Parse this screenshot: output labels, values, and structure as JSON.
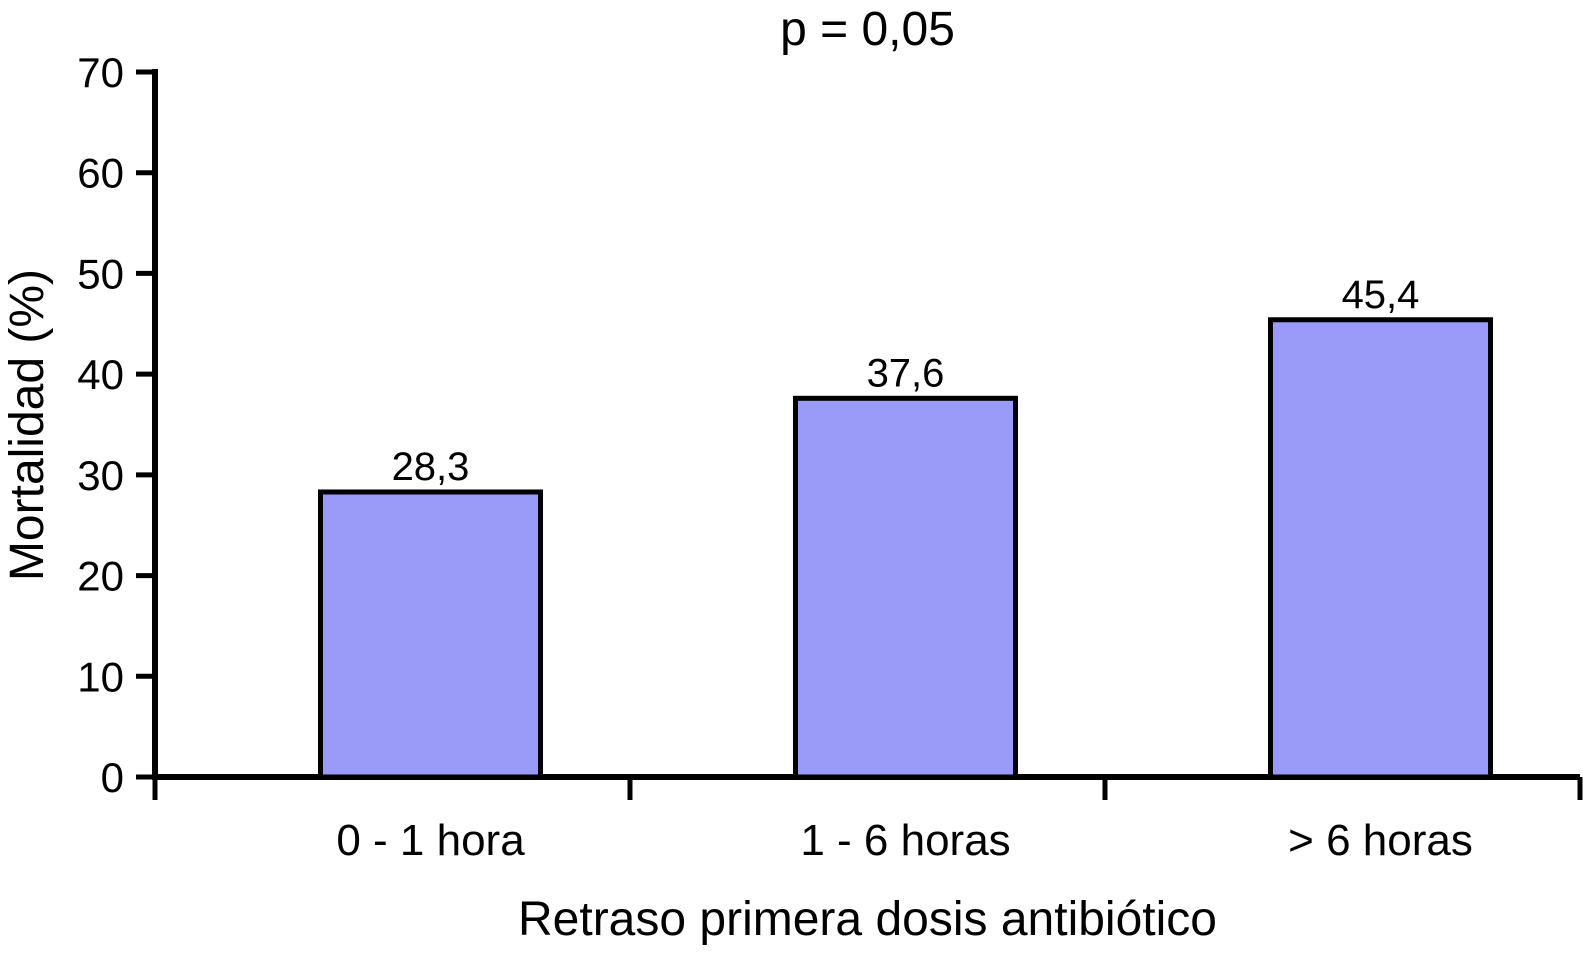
{
  "chart_data": {
    "type": "bar",
    "title": "p = 0,05",
    "categories": [
      "0 - 1 hora",
      "1 - 6 horas",
      "> 6 horas"
    ],
    "values": [
      28.3,
      37.6,
      45.4
    ],
    "value_labels": [
      "28,3",
      "37,6",
      "45,4"
    ],
    "xlabel": "Retraso primera dosis antibiótico",
    "ylabel": "Mortalidad (%)",
    "ylim": [
      0,
      70
    ],
    "ytick_step": 10,
    "ytick_labels": [
      "0",
      "10",
      "20",
      "30",
      "40",
      "50",
      "60",
      "70"
    ],
    "grid": false,
    "legend_position": "none",
    "colors": {
      "bar_fill": "#9A9AF8",
      "bar_border": "#000000",
      "axis": "#000000",
      "text": "#000000",
      "background": "#FFFFFF"
    }
  }
}
